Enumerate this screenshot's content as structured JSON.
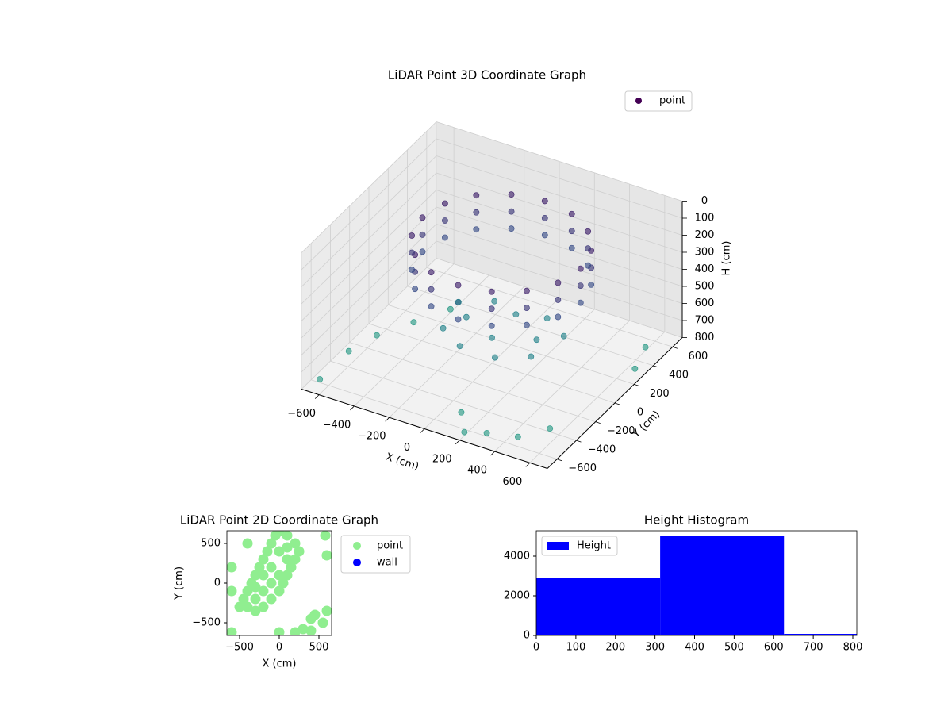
{
  "chart_data": [
    {
      "type": "scatter3d",
      "title": "LiDAR Point 3D Coordinate Graph",
      "xlabel": "X (cm)",
      "ylabel": "Y (cm)",
      "zlabel": "H (cm)",
      "xlim": [
        -700,
        700
      ],
      "ylim": [
        -700,
        700
      ],
      "zlim": [
        800,
        0
      ],
      "xticks": [
        {
          "value": -600,
          "label": "−600"
        },
        {
          "value": -400,
          "label": "−400"
        },
        {
          "value": -200,
          "label": "−200"
        },
        0,
        200,
        400,
        600
      ],
      "yticks": [
        {
          "value": -600,
          "label": "−600"
        },
        {
          "value": -400,
          "label": "−400"
        },
        {
          "value": -200,
          "label": "−200"
        },
        0,
        200,
        400,
        600
      ],
      "zticks": [
        0,
        100,
        200,
        300,
        400,
        500,
        600,
        700,
        800
      ],
      "colormap": "viridis",
      "grid": true,
      "legend": "upper right",
      "series": [
        {
          "name": "point",
          "color": "#440154",
          "x": [
            450,
            416,
            318,
            172,
            0,
            -172,
            -318,
            -416,
            -450,
            -416,
            -318,
            -172,
            0,
            172,
            318,
            416,
            450,
            416,
            318,
            172,
            0,
            -172,
            -318,
            -416,
            -450,
            -416,
            -318,
            -172,
            0,
            172,
            318,
            416,
            450,
            416,
            318,
            172,
            0,
            -172,
            -318,
            -416,
            -450,
            -416,
            -318,
            -172,
            0,
            172,
            318,
            416,
            0,
            200,
            -200,
            100,
            -100,
            250,
            -250,
            0,
            150,
            -150,
            300,
            -300,
            -650,
            -600,
            -500,
            300,
            450,
            200,
            550,
            650,
            600,
            -650,
            -400,
            100
          ],
          "y": [
            100,
            272,
            418,
            516,
            550,
            516,
            418,
            272,
            100,
            -72,
            -218,
            -316,
            -350,
            -316,
            -218,
            -72,
            100,
            272,
            418,
            516,
            550,
            516,
            418,
            272,
            100,
            -72,
            -218,
            -316,
            -350,
            -316,
            -218,
            -72,
            100,
            272,
            418,
            516,
            550,
            516,
            418,
            272,
            100,
            -72,
            -218,
            -316,
            -350,
            -316,
            -218,
            -72,
            0,
            100,
            100,
            -150,
            -150,
            -50,
            -50,
            250,
            300,
            300,
            200,
            200,
            -300,
            -100,
            100,
            -600,
            -550,
            -650,
            -400,
            300,
            500,
            -600,
            300,
            -500
          ],
          "h": [
            150,
            150,
            150,
            150,
            150,
            150,
            150,
            150,
            150,
            150,
            150,
            150,
            150,
            150,
            150,
            150,
            250,
            250,
            250,
            250,
            250,
            250,
            250,
            250,
            250,
            250,
            250,
            250,
            250,
            250,
            250,
            250,
            350,
            350,
            350,
            350,
            350,
            350,
            350,
            350,
            350,
            350,
            350,
            350,
            350,
            350,
            350,
            350,
            650,
            650,
            650,
            650,
            650,
            650,
            650,
            650,
            650,
            650,
            650,
            650,
            780,
            780,
            780,
            780,
            780,
            780,
            780,
            780,
            780,
            780,
            780,
            780
          ]
        }
      ]
    },
    {
      "type": "scatter",
      "title": "LiDAR Point 2D Coordinate Graph",
      "xlabel": "X (cm)",
      "ylabel": "Y (cm)",
      "xlim": [
        -660,
        660
      ],
      "ylim": [
        -660,
        660
      ],
      "xticks": [
        {
          "value": -500,
          "label": "−500"
        },
        0,
        500
      ],
      "yticks": [
        {
          "value": -500,
          "label": "−500"
        },
        0,
        500
      ],
      "legend": "outside right",
      "series": [
        {
          "name": "point",
          "color": "#90ee90",
          "x": [
            -500,
            -450,
            -400,
            -350,
            -300,
            -250,
            -200,
            -150,
            -100,
            -50,
            0,
            100,
            200,
            250,
            200,
            150,
            100,
            50,
            0,
            -100,
            -200,
            -300,
            -400,
            -300,
            -200,
            -100,
            0,
            100,
            -100,
            -200,
            -300,
            0,
            100,
            -400,
            -600,
            600,
            550,
            400,
            200,
            0,
            -600,
            600,
            580,
            -600,
            400,
            450,
            300
          ],
          "y": [
            -300,
            -200,
            -100,
            0,
            100,
            200,
            300,
            400,
            500,
            600,
            650,
            600,
            500,
            400,
            300,
            200,
            100,
            0,
            -100,
            -200,
            -300,
            -350,
            -300,
            -200,
            -100,
            0,
            100,
            300,
            200,
            100,
            -50,
            400,
            450,
            500,
            200,
            -350,
            -500,
            -600,
            -620,
            -620,
            -620,
            350,
            600,
            -100,
            -450,
            -400,
            -580
          ]
        },
        {
          "name": "wall",
          "color": "#0000ff",
          "x": [],
          "y": []
        }
      ]
    },
    {
      "type": "histogram",
      "title": "Height Histogram",
      "bins": [
        0,
        313,
        626,
        939
      ],
      "xlim": [
        0,
        810
      ],
      "ylim": [
        0,
        5280
      ],
      "xticks": [
        0,
        100,
        200,
        300,
        400,
        500,
        600,
        700,
        800
      ],
      "yticks": [
        0,
        2000,
        4000
      ],
      "legend": "upper left",
      "series": [
        {
          "name": "Height",
          "color": "#0000ff",
          "values": [
            2880,
            5040,
            80
          ]
        }
      ]
    }
  ]
}
